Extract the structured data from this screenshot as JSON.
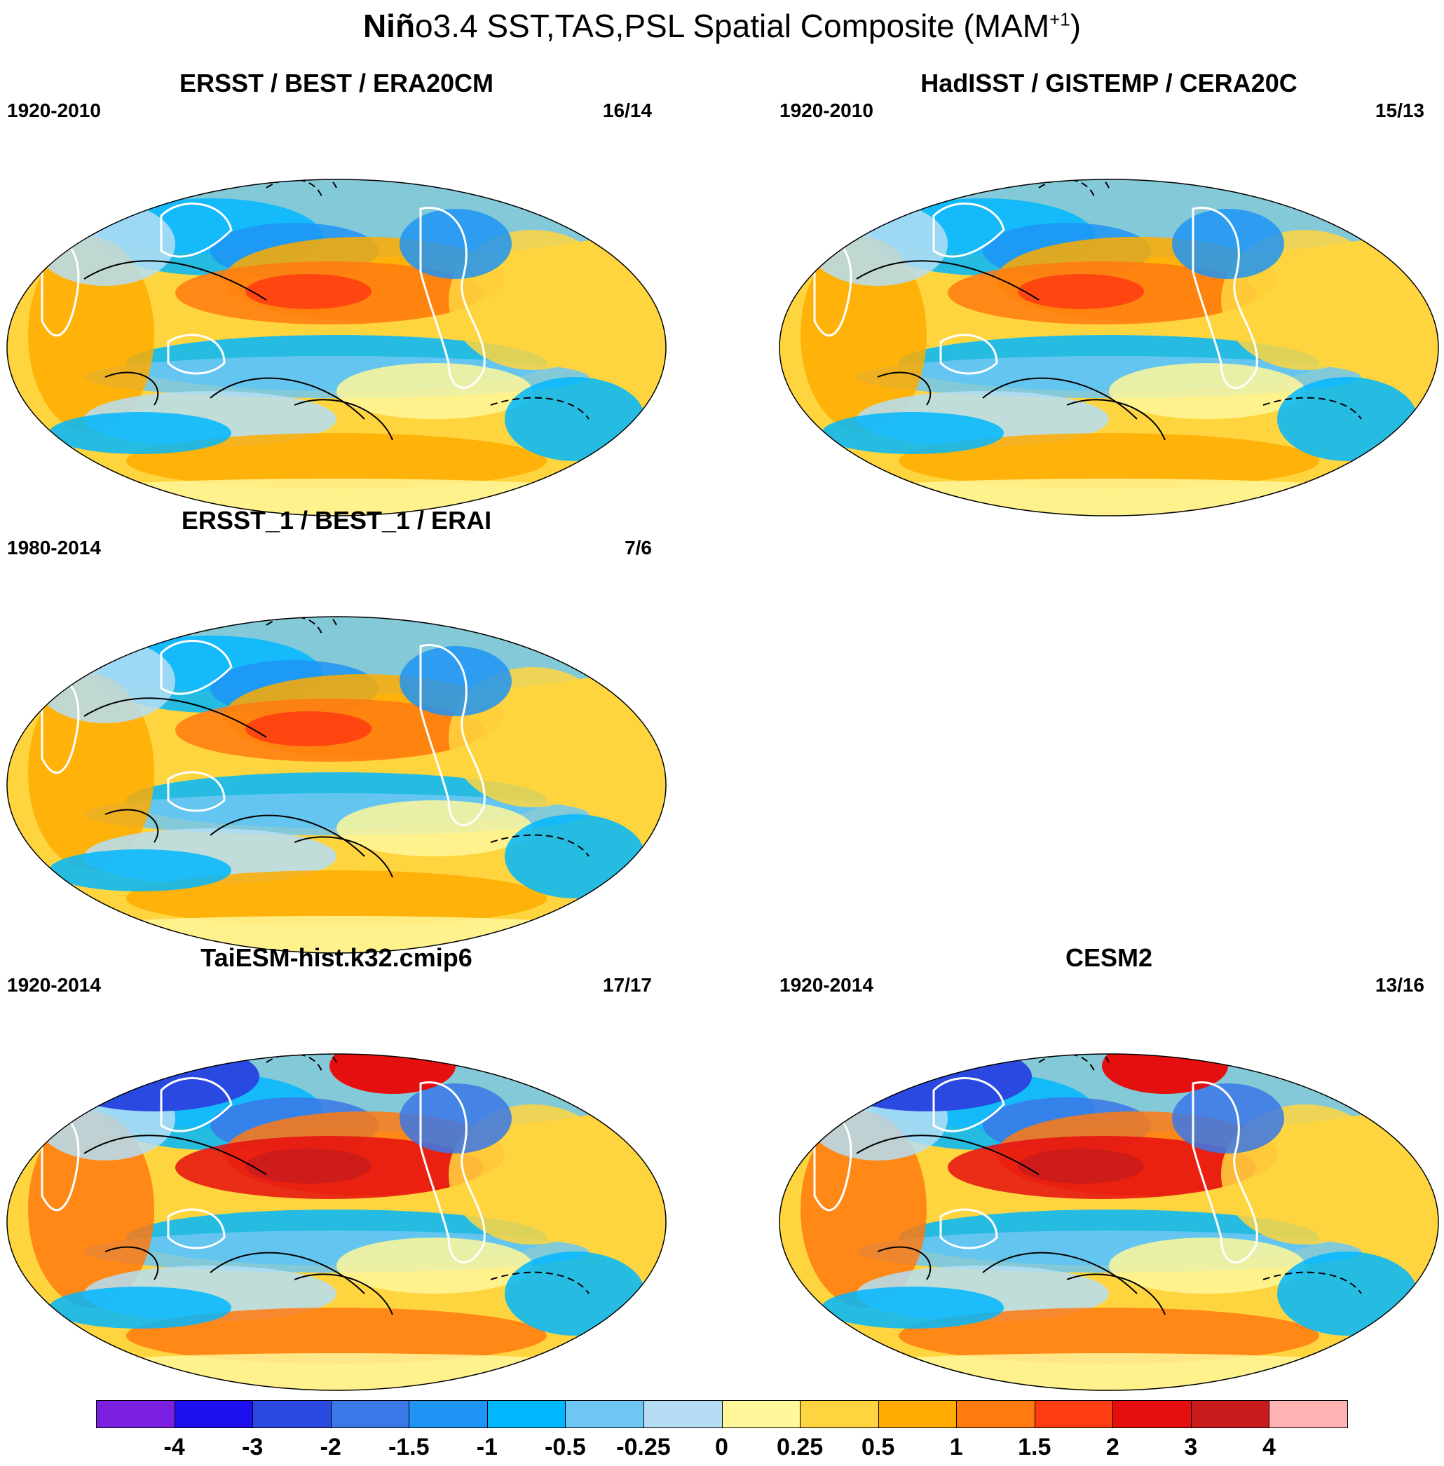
{
  "figure": {
    "title_bold": "Niñ",
    "title_rest": "o3.4 SST,TAS,PSL Spatial Composite (MAM",
    "title_sup": "+1",
    "title_close": ")"
  },
  "panels": [
    {
      "id": "p1",
      "title": "ERSST / BEST / ERA20CM",
      "period": "1920-2010",
      "count": "16/14",
      "style": "moderate"
    },
    {
      "id": "p2",
      "title": "HadISST / GISTEMP / CERA20C",
      "period": "1920-2010",
      "count": "15/13",
      "style": "moderate"
    },
    {
      "id": "p3",
      "title": "ERSST_1 / BEST_1 / ERAI",
      "period": "1980-2014",
      "count": "7/6",
      "style": "moderate"
    },
    {
      "id": "p4",
      "title": "TaiESM-hist.k32.cmip6",
      "period": "1920-2014",
      "count": "17/17",
      "style": "strong"
    },
    {
      "id": "p5",
      "title": "CESM2",
      "period": "1920-2014",
      "count": "13/16",
      "style": "strong"
    }
  ],
  "colorbar": {
    "colors": [
      "#7b1fe0",
      "#1e10f0",
      "#2a49e0",
      "#3a78e8",
      "#1e94f5",
      "#00b7ff",
      "#6ec7f2",
      "#b5def4",
      "#fff79a",
      "#ffd53f",
      "#ffab00",
      "#ff7a10",
      "#ff3c12",
      "#e60f0f",
      "#c81b1b",
      "#ffb3b3"
    ],
    "labels": [
      "-4",
      "-3",
      "-2",
      "-1.5",
      "-1",
      "-0.5",
      "-0.25",
      "0",
      "0.25",
      "0.5",
      "1",
      "1.5",
      "2",
      "3",
      "4"
    ]
  }
}
